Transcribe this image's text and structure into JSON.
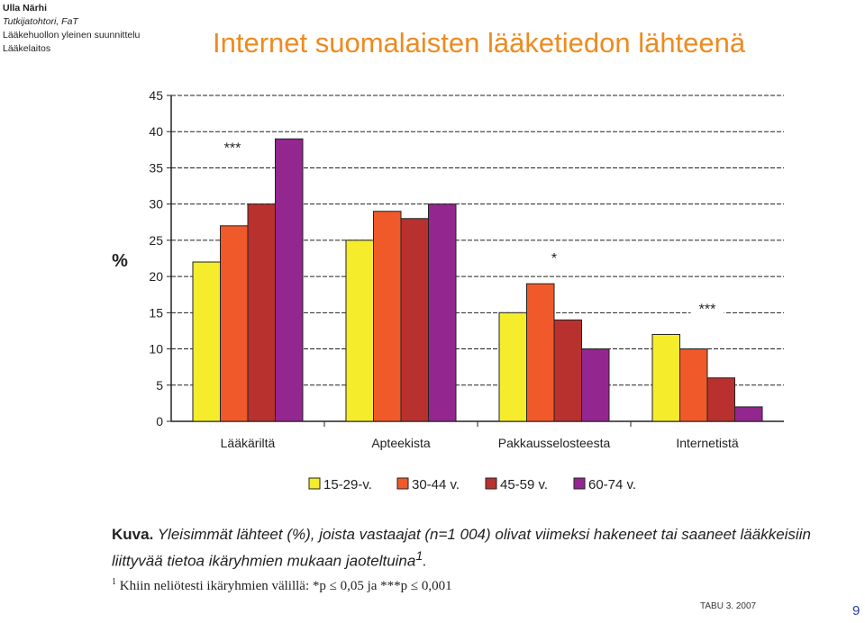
{
  "author": {
    "name": "Ulla Närhi",
    "role": "Tutkijatohtori, FaT",
    "line3": "Lääkehuollon yleinen suunnittelu",
    "line4": "Lääkelaitos"
  },
  "slide_title": "Internet suomalaisten lääketiedon lähteenä",
  "caption": {
    "label": "Kuva.",
    "text": "Yleisimmät lähteet (%), joista vastaajat (n=1 004) olivat viimeksi hakeneet tai saaneet lääkkeisiin liittyvää tietoa ikäryhmien mukaan jaoteltuina",
    "sup": "1",
    "end": "."
  },
  "footnote": {
    "sup": "1",
    "text": "Khiin neliötesti ikäryhmien välillä: *p ≤ 0,05 ja ***p ≤ 0,001"
  },
  "source": "TABU 3. 2007",
  "page_number": "9",
  "colors": {
    "title": "#ef8a1e",
    "series": [
      "#f5ec2c",
      "#f0592a",
      "#b8312f",
      "#93278f"
    ]
  },
  "chart_data": {
    "type": "bar",
    "ylabel": "%",
    "ylim": [
      0,
      45
    ],
    "yticks": [
      0,
      5,
      10,
      15,
      20,
      25,
      30,
      35,
      40,
      45
    ],
    "categories": [
      "Lääkäriltä",
      "Apteekista",
      "Pakkausselosteesta",
      "Internetistä"
    ],
    "series": [
      {
        "name": "15-29-v.",
        "values": [
          22,
          25,
          15,
          12
        ]
      },
      {
        "name": "30-44 v.",
        "values": [
          27,
          29,
          19,
          10
        ]
      },
      {
        "name": "45-59 v.",
        "values": [
          30,
          28,
          14,
          6
        ]
      },
      {
        "name": "60-74 v.",
        "values": [
          39,
          30,
          10,
          2
        ]
      }
    ],
    "significance": [
      "***",
      "",
      "*",
      "***"
    ],
    "legend_position": "bottom",
    "grid": "dashed horizontal"
  }
}
